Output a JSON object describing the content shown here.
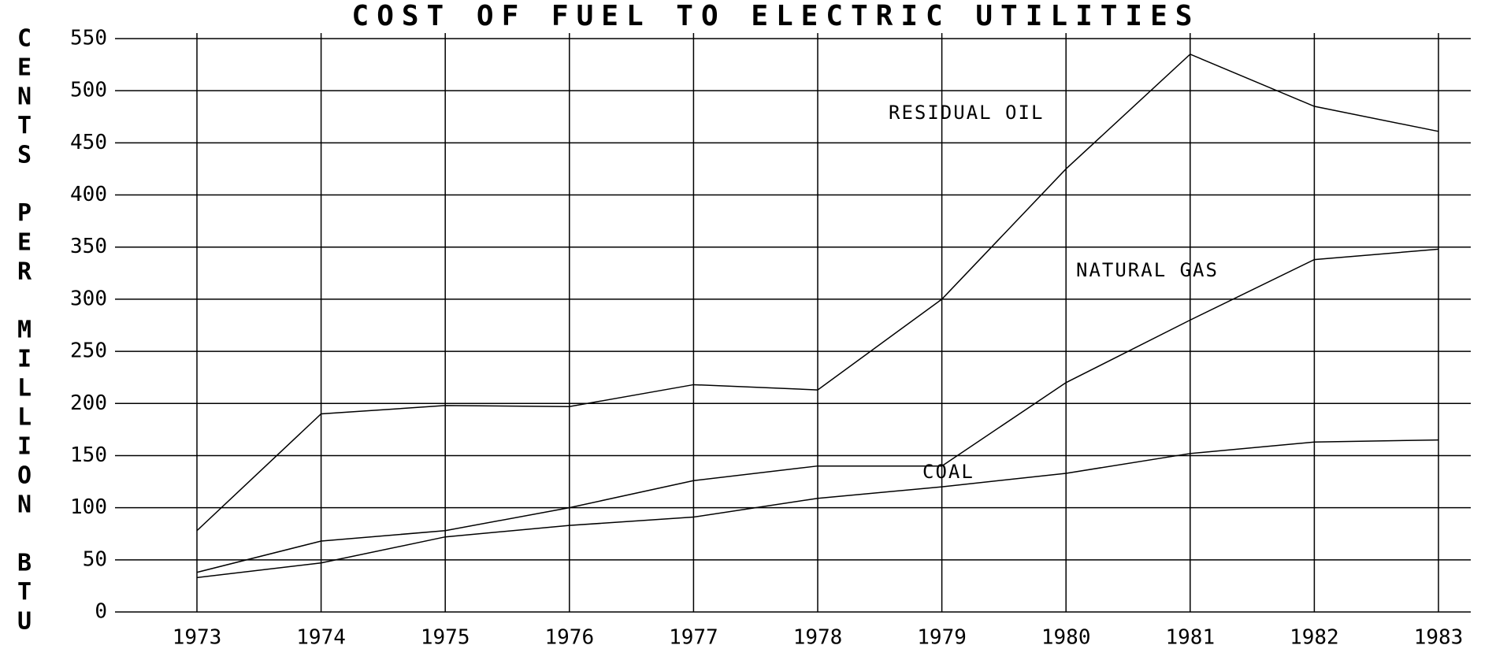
{
  "chart_data": {
    "type": "line",
    "title": "COST OF FUEL TO ELECTRIC UTILITIES",
    "y_label": "CENTS PER MILLION BTU",
    "categories": [
      "1973",
      "1974",
      "1975",
      "1976",
      "1977",
      "1978",
      "1979",
      "1980",
      "1981",
      "1982",
      "1983"
    ],
    "series": [
      {
        "name": "RESIDUAL OIL",
        "color": "#000000",
        "values": [
          78,
          190,
          198,
          197,
          218,
          213,
          300,
          425,
          535,
          485,
          461
        ]
      },
      {
        "name": "NATURAL GAS",
        "color": "#000000",
        "values": [
          38,
          68,
          78,
          100,
          126,
          140,
          140,
          220,
          280,
          338,
          348
        ]
      },
      {
        "name": "COAL",
        "color": "#000000",
        "values": [
          33,
          47,
          72,
          83,
          91,
          109,
          120,
          133,
          152,
          163,
          165
        ]
      }
    ],
    "ylim": [
      0,
      550
    ],
    "yticks": [
      0,
      50,
      100,
      150,
      200,
      250,
      300,
      350,
      400,
      450,
      500,
      550
    ],
    "grid": true
  }
}
